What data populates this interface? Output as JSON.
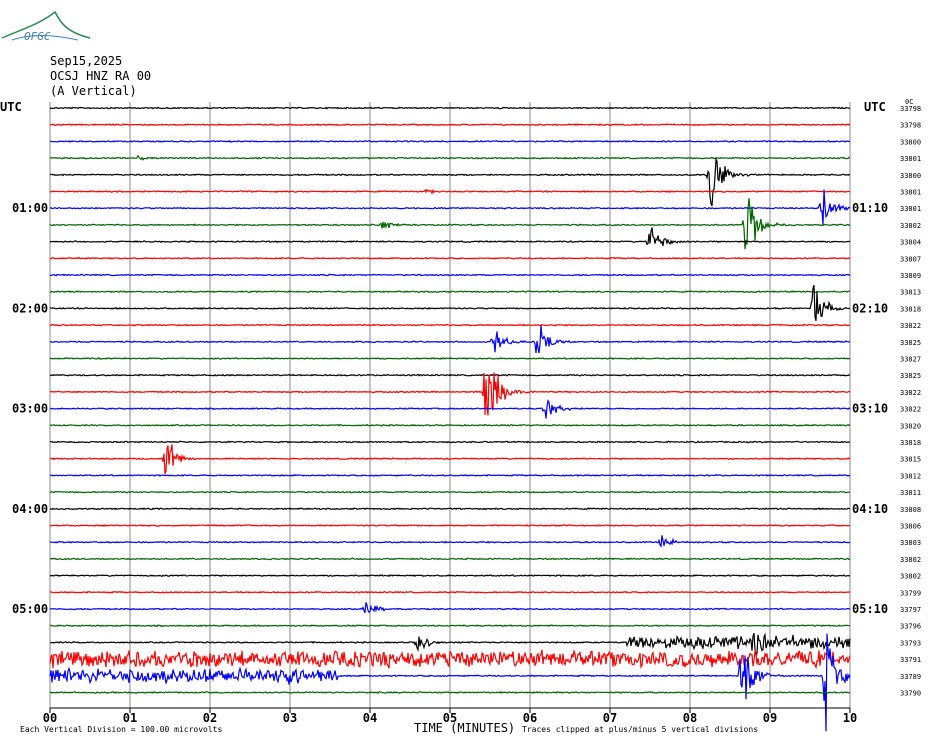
{
  "header": {
    "logo_text": "OFGC",
    "date": "Sep15,2025",
    "station": "OCSJ HNZ RA 00",
    "component": "(A Vertical)"
  },
  "labels": {
    "left_tz": "UTC",
    "right_tz": "UTC",
    "right_top_marker": "0C"
  },
  "footer": {
    "scale_note": "Each Vertical Division =  100.00 microvolts",
    "clip_note": "Traces clipped at plus/minus 5 vertical divisions",
    "xlabel": "TIME (MINUTES)"
  },
  "colors": {
    "black": "#000000",
    "red": "#ff0000",
    "blue": "#0000ff",
    "green": "#006400",
    "grid": "#888888"
  },
  "chart_data": {
    "type": "line",
    "title": "",
    "xlabel": "TIME (MINUTES)",
    "ylabel": "",
    "xlim": [
      0,
      10
    ],
    "x_ticks": [
      "00",
      "01",
      "02",
      "03",
      "04",
      "05",
      "06",
      "07",
      "08",
      "09",
      "10"
    ],
    "left_time_labels": [
      "01:00",
      "02:00",
      "03:00",
      "04:00",
      "05:00"
    ],
    "right_time_labels": [
      "01:10",
      "02:10",
      "03:10",
      "04:10",
      "05:10"
    ],
    "trace_color_cycle": [
      "black",
      "red",
      "blue",
      "green"
    ],
    "trace_counts": [
      "33798",
      "33798",
      "33800",
      "33801",
      "33800",
      "33801",
      "33801",
      "33802",
      "33804",
      "33807",
      "33809",
      "33813",
      "33818",
      "33822",
      "33825",
      "33827",
      "33825",
      "33822",
      "33822",
      "33820",
      "33818",
      "33815",
      "33812",
      "33811",
      "33808",
      "33806",
      "33803",
      "33802",
      "33802",
      "33799",
      "33797",
      "33796",
      "33793",
      "33791",
      "33789",
      "33790"
    ],
    "events": [
      {
        "trace": 3,
        "minute": 1.1,
        "amp": 0.2
      },
      {
        "trace": 4,
        "minute": 8.25,
        "amp": 2.8
      },
      {
        "trace": 5,
        "minute": 4.7,
        "amp": 0.2
      },
      {
        "trace": 6,
        "minute": 9.65,
        "amp": 1.5
      },
      {
        "trace": 7,
        "minute": 4.15,
        "amp": 0.3
      },
      {
        "trace": 7,
        "minute": 8.7,
        "amp": 2.5
      },
      {
        "trace": 8,
        "minute": 7.5,
        "amp": 1.2
      },
      {
        "trace": 12,
        "minute": 9.55,
        "amp": 1.8
      },
      {
        "trace": 14,
        "minute": 5.55,
        "amp": 1.0
      },
      {
        "trace": 14,
        "minute": 6.1,
        "amp": 1.3
      },
      {
        "trace": 17,
        "minute": 5.45,
        "amp": 3.5
      },
      {
        "trace": 18,
        "minute": 6.2,
        "amp": 0.8
      },
      {
        "trace": 21,
        "minute": 1.45,
        "amp": 1.4
      },
      {
        "trace": 26,
        "minute": 7.65,
        "amp": 0.4
      },
      {
        "trace": 30,
        "minute": 3.95,
        "amp": 0.5
      },
      {
        "trace": 32,
        "minute": 4.6,
        "amp": 0.7
      },
      {
        "trace": 32,
        "minute": 8.8,
        "amp": 1.0
      },
      {
        "trace": 34,
        "minute": 2.9,
        "amp": 0.6
      },
      {
        "trace": 34,
        "minute": 8.65,
        "amp": 3.0
      },
      {
        "trace": 34,
        "minute": 9.7,
        "amp": 3.0
      }
    ],
    "noisy_segments": [
      {
        "trace": 32,
        "from": 7.2,
        "to": 10.0,
        "amp": 0.35
      },
      {
        "trace": 33,
        "from": 0.0,
        "to": 10.0,
        "amp": 0.45
      },
      {
        "trace": 34,
        "from": 0.0,
        "to": 3.6,
        "amp": 0.4
      }
    ]
  }
}
